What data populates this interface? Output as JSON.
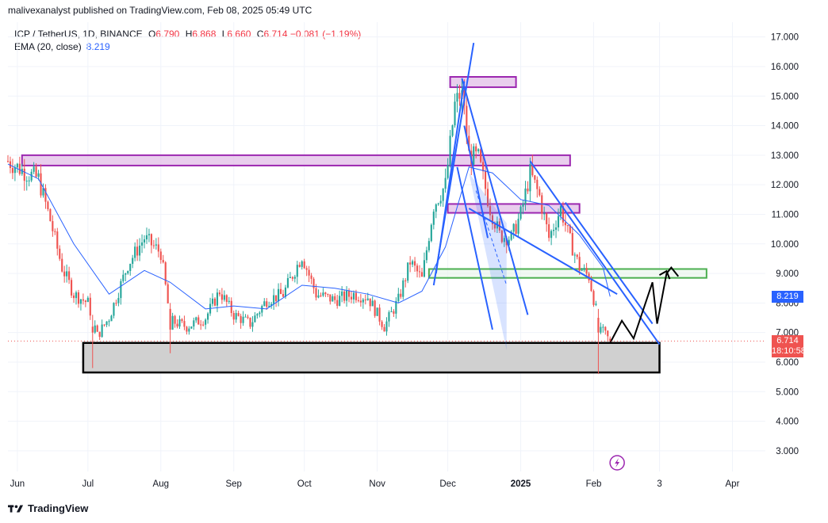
{
  "header": {
    "credit": "malivexanalyst published on TradingView.com, Feb 08, 2025 05:49 UTC"
  },
  "legend": {
    "symbol": "ICP / TetherUS, 1D, BINANCE",
    "open_label": "O",
    "open": "6.790",
    "high_label": "H",
    "high": "6.868",
    "low_label": "L",
    "low": "6.660",
    "close_label": "C",
    "close": "6.714",
    "change": "−0.081 (−1.19%)",
    "ema_label": "EMA (20, close)",
    "ema_value": "8.219"
  },
  "price_tags": {
    "ema": "8.219",
    "last": "6.714",
    "countdown": "18:10:58"
  },
  "footer": {
    "brand": "TradingView"
  },
  "colors": {
    "up": "#26a69a",
    "down": "#ef5350",
    "ema": "#2962ff",
    "last_tag": "#ef5350",
    "ema_tag": "#2962ff",
    "zone_purple_fill": "#e1bee7",
    "zone_purple_stroke": "#9c27b0",
    "zone_green_stroke": "#4caf50",
    "zone_gray_fill": "#d0d0d0"
  },
  "chart_data": {
    "type": "candlestick",
    "symbol": "ICP / TetherUS",
    "interval": "1D",
    "ylim": [
      2.3,
      17.5
    ],
    "y_ticks": [
      "3.000",
      "4.000",
      "5.000",
      "6.000",
      "7.000",
      "8.000",
      "9.000",
      "10.000",
      "11.000",
      "12.000",
      "13.000",
      "14.000",
      "15.000",
      "16.000",
      "17.000"
    ],
    "x_ticks": [
      "Jun",
      "Jul",
      "Aug",
      "Sep",
      "Oct",
      "Nov",
      "Dec",
      "2025",
      "Feb",
      "3",
      "Apr"
    ],
    "x_range": [
      "2024-05-28",
      "2025-04-15"
    ],
    "price_path": [
      [
        "2024-05-28",
        12.8
      ],
      [
        "2024-06-05",
        12.4
      ],
      [
        "2024-06-10",
        12.2
      ],
      [
        "2024-06-15",
        10.8
      ],
      [
        "2024-06-20",
        9.2
      ],
      [
        "2024-06-25",
        8.3
      ],
      [
        "2024-07-01",
        8.0
      ],
      [
        "2024-07-05",
        6.9
      ],
      [
        "2024-07-10",
        7.5
      ],
      [
        "2024-07-18",
        9.3
      ],
      [
        "2024-07-25",
        10.2
      ],
      [
        "2024-08-01",
        9.7
      ],
      [
        "2024-08-05",
        7.4
      ],
      [
        "2024-08-12",
        7.2
      ],
      [
        "2024-08-20",
        7.5
      ],
      [
        "2024-08-26",
        8.4
      ],
      [
        "2024-09-01",
        7.6
      ],
      [
        "2024-09-08",
        7.3
      ],
      [
        "2024-09-15",
        8.1
      ],
      [
        "2024-09-22",
        8.3
      ],
      [
        "2024-09-30",
        9.6
      ],
      [
        "2024-10-06",
        8.3
      ],
      [
        "2024-10-14",
        8.1
      ],
      [
        "2024-10-22",
        8.3
      ],
      [
        "2024-10-28",
        8.2
      ],
      [
        "2024-11-04",
        7.2
      ],
      [
        "2024-11-10",
        8.1
      ],
      [
        "2024-11-15",
        9.4
      ],
      [
        "2024-11-20",
        8.8
      ],
      [
        "2024-11-25",
        11.3
      ],
      [
        "2024-11-30",
        12.0
      ],
      [
        "2024-12-04",
        14.7
      ],
      [
        "2024-12-07",
        15.2
      ],
      [
        "2024-12-10",
        13.0
      ],
      [
        "2024-12-14",
        12.9
      ],
      [
        "2024-12-19",
        11.2
      ],
      [
        "2024-12-23",
        10.3
      ],
      [
        "2024-12-28",
        10.2
      ],
      [
        "2025-01-01",
        11.0
      ],
      [
        "2025-01-05",
        12.4
      ],
      [
        "2025-01-09",
        11.6
      ],
      [
        "2025-01-13",
        10.2
      ],
      [
        "2025-01-18",
        11.2
      ],
      [
        "2025-01-22",
        10.1
      ],
      [
        "2025-01-26",
        9.2
      ],
      [
        "2025-01-30",
        8.9
      ],
      [
        "2025-02-03",
        7.4
      ],
      [
        "2025-02-05",
        7.0
      ],
      [
        "2025-02-08",
        6.714
      ]
    ],
    "candle_samples": [
      {
        "t": "2024-07-03",
        "o": 7.2,
        "h": 7.6,
        "l": 5.8,
        "c": 7.0
      },
      {
        "t": "2024-08-05",
        "o": 7.8,
        "h": 8.0,
        "l": 6.3,
        "c": 7.1
      },
      {
        "t": "2024-12-07",
        "o": 14.9,
        "h": 15.6,
        "l": 14.4,
        "c": 15.2
      },
      {
        "t": "2025-02-03",
        "o": 7.5,
        "h": 7.8,
        "l": 5.6,
        "c": 7.0
      }
    ],
    "ema": {
      "name": "EMA (20, close)",
      "last": 8.219,
      "path": [
        [
          "2024-05-28",
          12.7
        ],
        [
          "2024-06-10",
          12.2
        ],
        [
          "2024-06-25",
          10.0
        ],
        [
          "2024-07-10",
          8.3
        ],
        [
          "2024-07-25",
          9.1
        ],
        [
          "2024-08-05",
          8.7
        ],
        [
          "2024-08-20",
          7.8
        ],
        [
          "2024-09-01",
          7.9
        ],
        [
          "2024-09-15",
          7.8
        ],
        [
          "2024-09-30",
          8.6
        ],
        [
          "2024-10-14",
          8.5
        ],
        [
          "2024-10-28",
          8.3
        ],
        [
          "2024-11-10",
          8.0
        ],
        [
          "2024-11-20",
          8.4
        ],
        [
          "2024-11-30",
          9.9
        ],
        [
          "2024-12-10",
          12.6
        ],
        [
          "2024-12-20",
          12.4
        ],
        [
          "2025-01-01",
          11.5
        ],
        [
          "2025-01-13",
          11.3
        ],
        [
          "2025-01-26",
          10.3
        ],
        [
          "2025-02-05",
          9.2
        ],
        [
          "2025-02-08",
          8.219
        ]
      ]
    },
    "last_price": 6.714,
    "countdown": "18:10:58",
    "annotations": {
      "zones": [
        {
          "style": "purple",
          "from": "2024-06-03",
          "to": "2025-01-22",
          "low": 12.65,
          "high": 13.0
        },
        {
          "style": "purple",
          "from": "2024-12-02",
          "to": "2024-12-30",
          "low": 15.3,
          "high": 15.65
        },
        {
          "style": "purple",
          "from": "2024-12-01",
          "to": "2025-01-26",
          "low": 11.05,
          "high": 11.35
        },
        {
          "style": "green",
          "from": "2024-11-23",
          "to": "2025-03-21",
          "low": 8.85,
          "high": 9.15
        },
        {
          "style": "gray",
          "from": "2024-06-29",
          "to": "2025-03-01",
          "low": 5.65,
          "high": 6.65
        }
      ],
      "trend_lines": [
        {
          "from": [
            "2024-11-25",
            8.6
          ],
          "to": [
            "2024-12-12",
            16.8
          ]
        },
        {
          "from": [
            "2024-11-26",
            9.0
          ],
          "to": [
            "2024-12-08",
            15.5
          ]
        },
        {
          "from": [
            "2024-12-07",
            15.6
          ],
          "to": [
            "2025-01-04",
            7.6
          ]
        },
        {
          "from": [
            "2024-12-08",
            14.0
          ],
          "to": [
            "2024-12-18",
            10.2
          ]
        },
        {
          "from": [
            "2024-12-05",
            12.6
          ],
          "to": [
            "2024-12-20",
            7.1
          ]
        },
        {
          "from": [
            "2025-01-05",
            12.8
          ],
          "to": [
            "2025-03-01",
            6.6
          ]
        },
        {
          "from": [
            "2025-01-20",
            11.4
          ],
          "to": [
            "2025-02-26",
            7.3
          ]
        },
        {
          "from": [
            "2024-12-10",
            11.2
          ],
          "to": [
            "2025-02-11",
            8.3
          ]
        }
      ],
      "shaded_triangle": [
        [
          "2024-12-10",
          12.4
        ],
        [
          "2024-12-26",
          6.4
        ],
        [
          "2024-12-26",
          10.7
        ]
      ],
      "projection_path": [
        [
          "2025-02-08",
          6.65
        ],
        [
          "2025-02-13",
          7.4
        ],
        [
          "2025-02-18",
          6.8
        ],
        [
          "2025-02-26",
          8.7
        ],
        [
          "2025-02-28",
          7.3
        ],
        [
          "2025-03-04",
          9.0
        ],
        [
          "2025-03-06",
          9.2
        ],
        [
          "2025-03-09",
          8.9
        ]
      ]
    }
  }
}
